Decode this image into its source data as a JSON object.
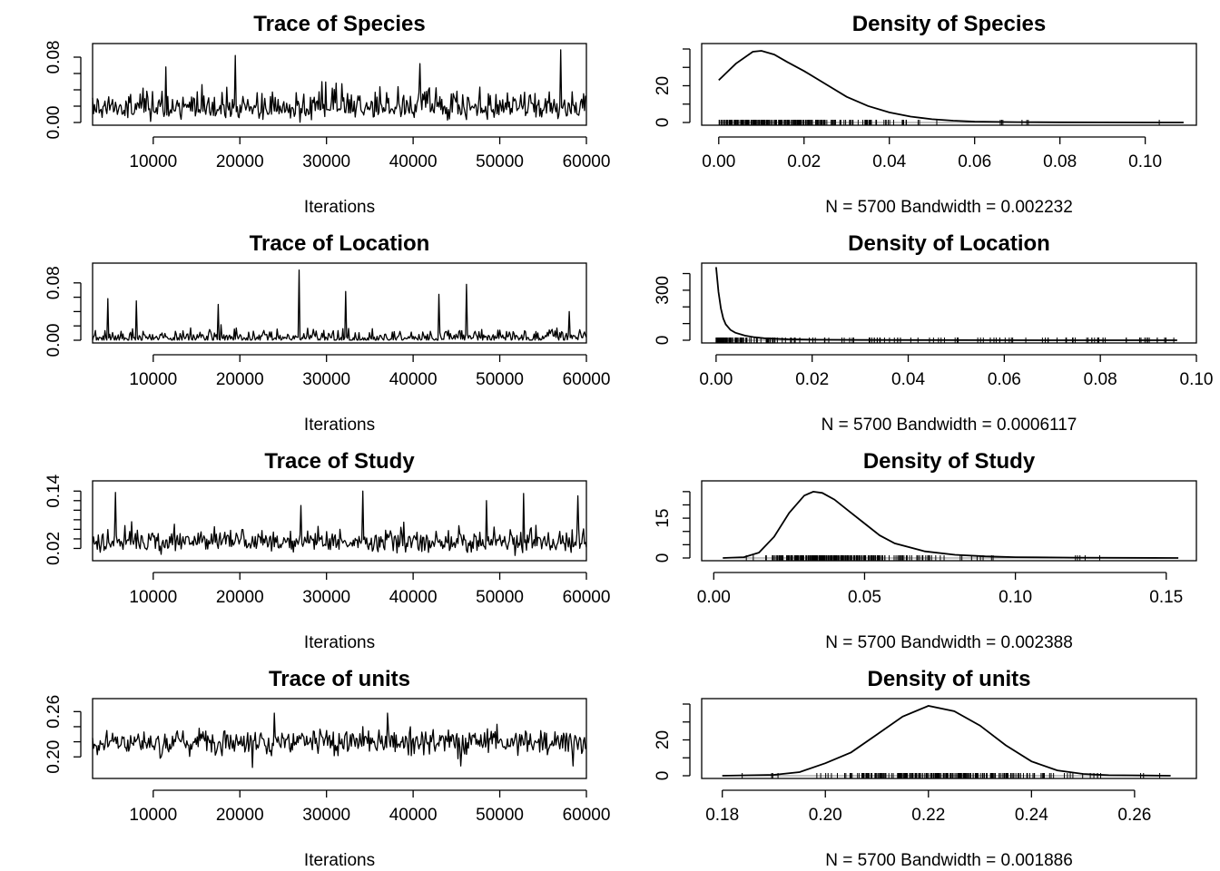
{
  "chart_data": [
    {
      "type": "line",
      "title": "Trace of Species",
      "xlabel": "Iterations",
      "xlim": [
        3000,
        60000
      ],
      "xticks": [
        10000,
        20000,
        30000,
        40000,
        50000,
        60000
      ],
      "ylim": [
        0.0,
        0.09
      ],
      "yticks": [
        0.0,
        0.02,
        0.04,
        0.06,
        0.08
      ],
      "ytick_labels": [
        "0.00",
        "",
        "",
        "",
        "0.08"
      ],
      "trace": {
        "mean": 0.018,
        "spread": 0.012,
        "max": 0.09,
        "spikes": [
          [
            19500,
            0.082
          ],
          [
            57000,
            0.089
          ],
          [
            40800,
            0.072
          ],
          [
            11500,
            0.068
          ]
        ]
      }
    },
    {
      "type": "line",
      "title": "Density of Species",
      "xlabel": "N = 5700   Bandwidth = 0.002232",
      "xlim": [
        -0.004,
        0.112
      ],
      "xticks": [
        0.0,
        0.02,
        0.04,
        0.06,
        0.08,
        0.1
      ],
      "xtick_labels": [
        "0.00",
        "0.02",
        "0.04",
        "0.06",
        "0.08",
        "0.10"
      ],
      "ylim": [
        0,
        40
      ],
      "yticks": [
        0,
        10,
        20,
        30,
        40
      ],
      "ytick_labels": [
        "0",
        "",
        "20",
        "",
        ""
      ],
      "x": [
        0.0,
        0.004,
        0.008,
        0.01,
        0.013,
        0.016,
        0.02,
        0.025,
        0.03,
        0.035,
        0.04,
        0.045,
        0.05,
        0.055,
        0.06,
        0.07,
        0.08,
        0.09,
        0.1,
        0.109
      ],
      "y": [
        23,
        32,
        38.5,
        39,
        37,
        33,
        28,
        21,
        14,
        9,
        5.5,
        3.2,
        1.8,
        1.0,
        0.5,
        0.2,
        0.1,
        0.05,
        0.02,
        0
      ],
      "rug_range": [
        0.0,
        0.109
      ]
    },
    {
      "type": "line",
      "title": "Trace of Location",
      "xlabel": "Iterations",
      "xlim": [
        3000,
        60000
      ],
      "xticks": [
        10000,
        20000,
        30000,
        40000,
        50000,
        60000
      ],
      "ylim": [
        0.0,
        0.1
      ],
      "yticks": [
        0.0,
        0.02,
        0.04,
        0.06,
        0.08
      ],
      "ytick_labels": [
        "0.00",
        "",
        "",
        "",
        "0.08"
      ],
      "trace": {
        "mean": 0.004,
        "spread": 0.006,
        "max": 0.1,
        "spikes": [
          [
            26800,
            0.098
          ],
          [
            46200,
            0.078
          ],
          [
            32200,
            0.068
          ],
          [
            43000,
            0.064
          ],
          [
            8000,
            0.055
          ],
          [
            4800,
            0.058
          ],
          [
            17500,
            0.05
          ],
          [
            58000,
            0.04
          ]
        ]
      }
    },
    {
      "type": "line",
      "title": "Density of Location",
      "xlabel": "N = 5700   Bandwidth = 0.0006117",
      "xlim": [
        -0.003,
        0.1
      ],
      "xticks": [
        0.0,
        0.02,
        0.04,
        0.06,
        0.08,
        0.1
      ],
      "xtick_labels": [
        "0.00",
        "0.02",
        "0.04",
        "0.06",
        "0.08",
        "0.10"
      ],
      "ylim": [
        0,
        430
      ],
      "yticks": [
        0,
        100,
        200,
        300,
        400
      ],
      "ytick_labels": [
        "0",
        "",
        "",
        "300",
        ""
      ],
      "x": [
        0.0,
        0.0005,
        0.001,
        0.0015,
        0.002,
        0.003,
        0.004,
        0.006,
        0.008,
        0.01,
        0.015,
        0.02,
        0.03,
        0.05,
        0.07,
        0.096
      ],
      "y": [
        450,
        290,
        190,
        130,
        95,
        62,
        45,
        28,
        18,
        12,
        6,
        3,
        1.5,
        0.5,
        0.2,
        0
      ],
      "rug_range": [
        0.0,
        0.096
      ]
    },
    {
      "type": "line",
      "title": "Trace of Study",
      "xlabel": "Iterations",
      "xlim": [
        3000,
        60000
      ],
      "xticks": [
        10000,
        20000,
        30000,
        40000,
        50000,
        60000
      ],
      "ylim": [
        0.0,
        0.15
      ],
      "yticks": [
        0.02,
        0.04,
        0.06,
        0.08,
        0.1,
        0.12,
        0.14
      ],
      "ytick_labels": [
        "0.02",
        "",
        "",
        "",
        "",
        "",
        "0.14"
      ],
      "trace": {
        "mean": 0.033,
        "spread": 0.016,
        "max": 0.145,
        "spikes": [
          [
            5600,
            0.137
          ],
          [
            34200,
            0.14
          ],
          [
            52800,
            0.135
          ],
          [
            59000,
            0.13
          ],
          [
            27000,
            0.11
          ],
          [
            48500,
            0.12
          ]
        ]
      }
    },
    {
      "type": "line",
      "title": "Density of Study",
      "xlabel": "N = 5700   Bandwidth = 0.002388",
      "xlim": [
        -0.004,
        0.16
      ],
      "xticks": [
        0.0,
        0.05,
        0.1,
        0.15
      ],
      "xtick_labels": [
        "0.00",
        "0.05",
        "0.10",
        "0.15"
      ],
      "ylim": [
        0,
        27
      ],
      "yticks": [
        0,
        5,
        10,
        15,
        20,
        25
      ],
      "ytick_labels": [
        "0",
        "",
        "",
        "15",
        "",
        ""
      ],
      "x": [
        0.003,
        0.01,
        0.015,
        0.02,
        0.025,
        0.03,
        0.033,
        0.036,
        0.04,
        0.045,
        0.05,
        0.055,
        0.06,
        0.07,
        0.08,
        0.09,
        0.1,
        0.12,
        0.154
      ],
      "y": [
        0,
        0.3,
        2,
        8,
        17,
        23.5,
        25,
        24.5,
        22,
        17.5,
        13,
        8.5,
        5.5,
        2.5,
        1.2,
        0.6,
        0.3,
        0.1,
        0
      ],
      "rug_range": [
        0.003,
        0.154
      ]
    },
    {
      "type": "line",
      "title": "Trace of units",
      "xlabel": "Iterations",
      "xlim": [
        3000,
        60000
      ],
      "xticks": [
        10000,
        20000,
        30000,
        40000,
        50000,
        60000
      ],
      "ylim": [
        0.175,
        0.27
      ],
      "yticks": [
        0.2,
        0.22,
        0.24,
        0.26
      ],
      "ytick_labels": [
        "0.20",
        "",
        "",
        "0.26"
      ],
      "trace": {
        "mean": 0.22,
        "spread": 0.0085,
        "max": 0.26,
        "spikes": [
          [
            24000,
            0.258
          ],
          [
            37100,
            0.258
          ],
          [
            58500,
            0.188
          ],
          [
            21500,
            0.186
          ],
          [
            45500,
            0.188
          ]
        ]
      }
    },
    {
      "type": "line",
      "title": "Density of units",
      "xlabel": "N = 5700   Bandwidth = 0.001886",
      "xlim": [
        0.176,
        0.272
      ],
      "xticks": [
        0.18,
        0.2,
        0.22,
        0.24,
        0.26
      ],
      "xtick_labels": [
        "0.18",
        "0.20",
        "0.22",
        "0.24",
        "0.26"
      ],
      "ylim": [
        0,
        40
      ],
      "yticks": [
        0,
        10,
        20,
        30,
        40
      ],
      "ytick_labels": [
        "0",
        "",
        "20",
        "",
        ""
      ],
      "x": [
        0.18,
        0.19,
        0.195,
        0.2,
        0.205,
        0.21,
        0.215,
        0.22,
        0.225,
        0.23,
        0.235,
        0.24,
        0.245,
        0.25,
        0.255,
        0.267
      ],
      "y": [
        0,
        0.5,
        2,
        7,
        13,
        23,
        33,
        39,
        36,
        28,
        17,
        8,
        3,
        1,
        0.3,
        0
      ],
      "rug_range": [
        0.18,
        0.267
      ]
    }
  ]
}
